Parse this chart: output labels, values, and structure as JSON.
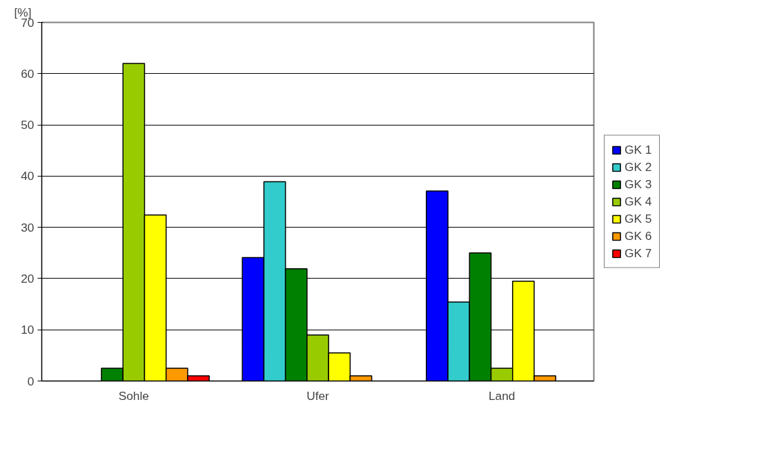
{
  "chart_data": {
    "type": "bar",
    "ylabel": "[%]",
    "categories": [
      "Sohle",
      "Ufer",
      "Land"
    ],
    "series": [
      {
        "name": "GK 1",
        "color": "#0000ff",
        "values": [
          null,
          24.1,
          37.1
        ]
      },
      {
        "name": "GK 2",
        "color": "#33cccc",
        "values": [
          null,
          38.9,
          15.4
        ]
      },
      {
        "name": "GK 3",
        "color": "#008000",
        "values": [
          2.5,
          21.9,
          25.0
        ]
      },
      {
        "name": "GK 4",
        "color": "#99cc00",
        "values": [
          62.0,
          9.0,
          2.5
        ]
      },
      {
        "name": "GK 5",
        "color": "#ffff00",
        "values": [
          32.4,
          5.5,
          19.5
        ]
      },
      {
        "name": "GK 6",
        "color": "#ff9900",
        "values": [
          2.5,
          1.0,
          1.0
        ]
      },
      {
        "name": "GK 7",
        "color": "#ff0000",
        "values": [
          1.0,
          null,
          null
        ]
      }
    ],
    "ylim": [
      0,
      70
    ],
    "yticks": [
      0,
      10,
      20,
      30,
      40,
      50,
      60,
      70
    ],
    "grid": "y",
    "legend": "right"
  }
}
